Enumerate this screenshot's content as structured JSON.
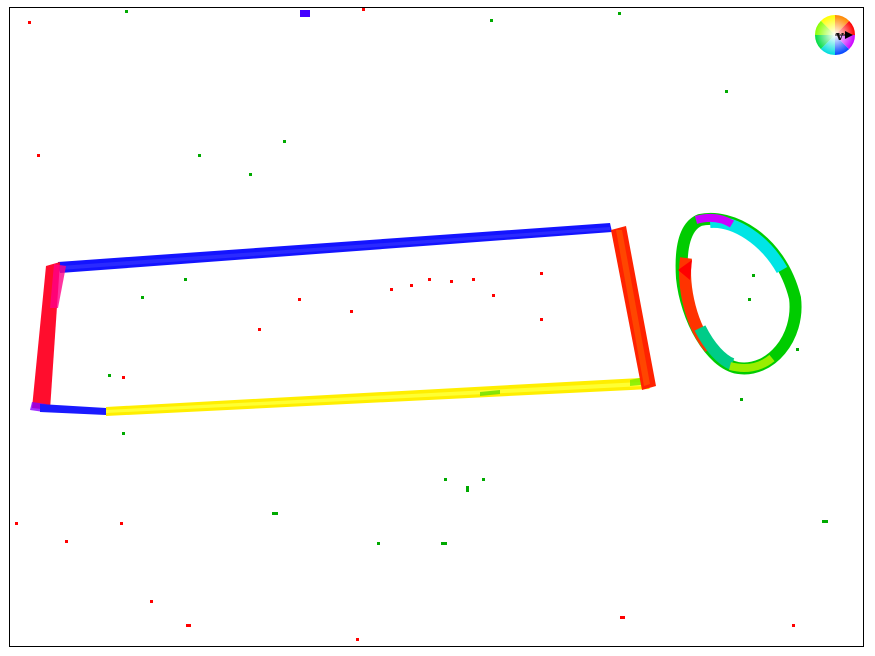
{
  "legend": {
    "wheel_label": "v"
  },
  "colors": {
    "left_direction": "#0000ff",
    "right_direction": "#ffff00",
    "up_direction": "#ff0000",
    "down_direction": "#00cc00",
    "diagonal_cyan": "#00e5e5",
    "background": "#ffffff",
    "frame": "#000000"
  },
  "icons": {
    "color_wheel": "color-wheel-icon",
    "arrow": "triangle-right-icon"
  }
}
